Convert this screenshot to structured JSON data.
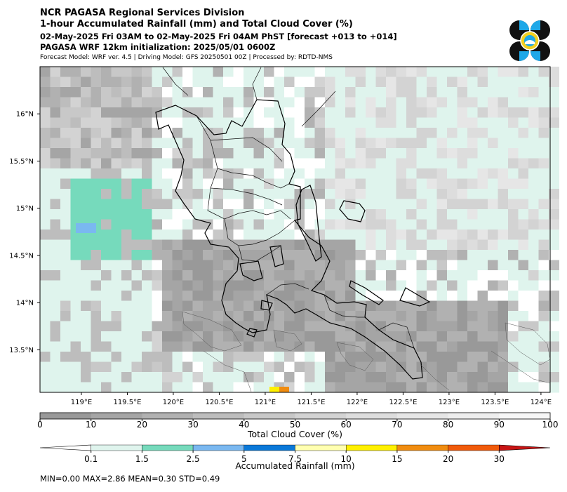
{
  "header": {
    "org": "NCR PAGASA Regional Services Division",
    "product": "1-hour Accumulated Rainfall (mm) and Total Cloud Cover (%)",
    "valid_period": "02-May-2025 Fri 03AM to 02-May-2025 Fri 04AM PhST [forecast +013 to +014]",
    "init": "PAGASA WRF 12km initialization: 2025/05/01 0600Z",
    "model_info": "Forecast Model: WRF ver. 4.5 | Driving Model: GFS 20250501 00Z | Processed by: RDTD-NMS"
  },
  "map": {
    "lon_range": [
      118.55,
      124.1
    ],
    "lat_range": [
      13.05,
      16.5
    ],
    "lon_ticks": [
      "119°E",
      "119.5°E",
      "120°E",
      "120.5°E",
      "121°E",
      "121.5°E",
      "122°E",
      "122.5°E",
      "123°E",
      "123.5°E",
      "124°E"
    ],
    "lon_tick_values": [
      119,
      119.5,
      120,
      120.5,
      121,
      121.5,
      122,
      122.5,
      123,
      123.5,
      124
    ],
    "lat_ticks": [
      "16°N",
      "15.5°N",
      "15°N",
      "14.5°N",
      "14°N",
      "13.5°N"
    ],
    "lat_tick_values": [
      16,
      15.5,
      15,
      14.5,
      14,
      13.5
    ],
    "colors": {
      "rain_light": "#dff4ed",
      "rain_moderate": "#76dabc",
      "rain_2_5": "#7ab8f0",
      "rain_yellow": "#fff000",
      "rain_orange": "#f08c10"
    }
  },
  "cloud_colorbar": {
    "label": "Total Cloud Cover (%)",
    "ticks": [
      "0",
      "10",
      "20",
      "30",
      "40",
      "50",
      "60",
      "70",
      "80",
      "90",
      "100"
    ],
    "colors": [
      "#999999",
      "#a5a5a5",
      "#b1b1b1",
      "#bdbdbd",
      "#c8c8c8",
      "#d3d3d3",
      "#dddddd",
      "#e6e6e6",
      "#eeeeee",
      "#f7f7f7"
    ]
  },
  "rain_colorbar": {
    "label": "Accumulated Rainfall (mm)",
    "ticks": [
      "0.1",
      "1.5",
      "2.5",
      "5",
      "7.5",
      "10",
      "15",
      "20",
      "30"
    ],
    "colors": [
      "#dff4ed",
      "#76dabc",
      "#7ab8f0",
      "#0a78d8",
      "#ffffb0",
      "#fff000",
      "#f08c10",
      "#f05a0a",
      "#c81414"
    ]
  },
  "stats": {
    "text": "MIN=0.00   MAX=2.86   MEAN=0.30   STD=0.49"
  }
}
